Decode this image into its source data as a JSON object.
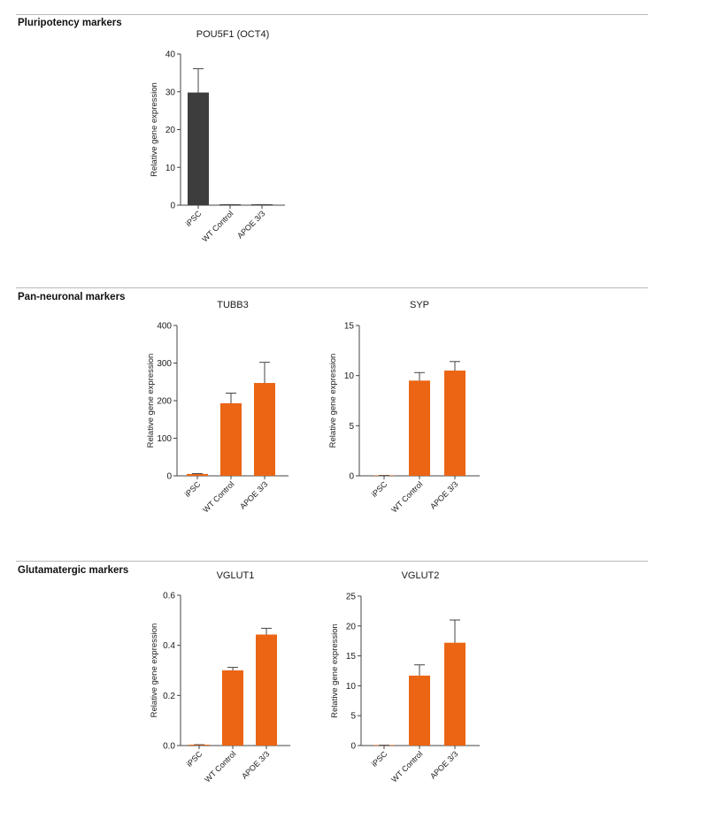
{
  "sections": [
    {
      "title": "Pluripotency markers"
    },
    {
      "title": "Pan-neuronal markers"
    },
    {
      "title": "Glutamatergic markers"
    }
  ],
  "colors": {
    "ipsc_dark": "#3d3d3d",
    "neuron_orange": "#eb6514",
    "axis": "#444444",
    "divider": "#b9b9b9"
  },
  "chart_data": [
    {
      "type": "bar",
      "section": "Pluripotency markers",
      "title": "POU5F1 (OCT4)",
      "ylabel": "Relative gene expression",
      "xlabel": "",
      "categories": [
        "iPSC",
        "WT Control",
        "APOE 3/3"
      ],
      "values": [
        29.8,
        0.1,
        0.1
      ],
      "errors": [
        6.3,
        0.05,
        0.05
      ],
      "ylim": [
        0,
        40
      ],
      "yticks": [
        0,
        10,
        20,
        30,
        40
      ],
      "bar_colors": [
        "#3d3d3d",
        "#3d3d3d",
        "#3d3d3d"
      ],
      "grid": false
    },
    {
      "type": "bar",
      "section": "Pan-neuronal markers",
      "title": "TUBB3",
      "ylabel": "Relative gene expression",
      "xlabel": "",
      "categories": [
        "iPSC",
        "WT Control",
        "APOE 3/3"
      ],
      "values": [
        5,
        193,
        247
      ],
      "errors": [
        1,
        27,
        55
      ],
      "ylim": [
        0,
        400
      ],
      "yticks": [
        0,
        100,
        200,
        300,
        400
      ],
      "bar_colors": [
        "#eb6514",
        "#eb6514",
        "#eb6514"
      ],
      "grid": false
    },
    {
      "type": "bar",
      "section": "Pan-neuronal markers",
      "title": "SYP",
      "ylabel": "Relative gene expression",
      "xlabel": "",
      "categories": [
        "iPSC",
        "WT Control",
        "APOE 3/3"
      ],
      "values": [
        0,
        9.5,
        10.5
      ],
      "errors": [
        0,
        0.8,
        0.9
      ],
      "ylim": [
        0,
        15
      ],
      "yticks": [
        0,
        5,
        10,
        15
      ],
      "bar_colors": [
        "#eb6514",
        "#eb6514",
        "#eb6514"
      ],
      "grid": false
    },
    {
      "type": "bar",
      "section": "Glutamatergic markers",
      "title": "VGLUT1",
      "ylabel": "Relative gene expression",
      "xlabel": "",
      "categories": [
        "iPSC",
        "WT Control",
        "APOE 3/3"
      ],
      "values": [
        0.002,
        0.3,
        0.443
      ],
      "errors": [
        0,
        0.012,
        0.025
      ],
      "ylim": [
        0,
        0.6
      ],
      "yticks": [
        "0.0",
        "0.2",
        "0.4",
        "0.6"
      ],
      "bar_colors": [
        "#eb6514",
        "#eb6514",
        "#eb6514"
      ],
      "grid": false
    },
    {
      "type": "bar",
      "section": "Glutamatergic markers",
      "title": "VGLUT2",
      "ylabel": "Relative gene expression",
      "xlabel": "",
      "categories": [
        "iPSC",
        "WT Control",
        "APOE 3/3"
      ],
      "values": [
        0,
        11.7,
        17.2
      ],
      "errors": [
        0,
        1.8,
        3.8
      ],
      "ylim": [
        0,
        25
      ],
      "yticks": [
        0,
        5,
        10,
        15,
        20,
        25
      ],
      "bar_colors": [
        "#eb6514",
        "#eb6514",
        "#eb6514"
      ],
      "grid": false
    }
  ]
}
